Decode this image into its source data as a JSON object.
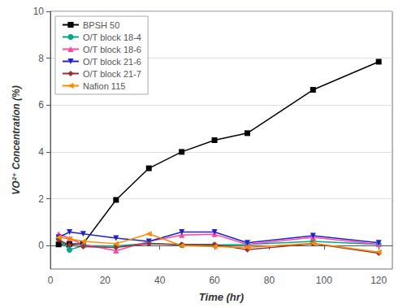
{
  "chart_data": {
    "type": "line",
    "xlabel": "Time (hr)",
    "ylabel": "VO²⁺ Concentration (%)",
    "x": [
      3,
      7,
      12,
      24,
      36,
      48,
      60,
      72,
      96,
      120
    ],
    "series": [
      {
        "name": "BPSH 50",
        "color": "#000000",
        "marker": "square",
        "values": [
          0.05,
          0.07,
          0.08,
          1.95,
          3.3,
          4.0,
          4.5,
          4.8,
          6.65,
          7.85
        ]
      },
      {
        "name": "O/T block 18-4",
        "color": "#00aa88",
        "marker": "circle",
        "values": [
          0.3,
          -0.18,
          0.0,
          -0.02,
          0.1,
          0.02,
          0.02,
          0.05,
          0.18,
          0.05
        ]
      },
      {
        "name": "O/T block 18-6",
        "color": "#ff44aa",
        "marker": "triangle-up",
        "values": [
          0.5,
          0.3,
          0.05,
          -0.22,
          0.18,
          0.45,
          0.48,
          0.05,
          0.35,
          0.05
        ]
      },
      {
        "name": "O/T block 21-6",
        "color": "#2222cc",
        "marker": "triangle-down",
        "values": [
          0.35,
          0.58,
          0.5,
          0.32,
          0.18,
          0.58,
          0.58,
          0.12,
          0.42,
          0.12
        ]
      },
      {
        "name": "O/T block 21-7",
        "color": "#993333",
        "marker": "diamond",
        "values": [
          0.25,
          0.02,
          -0.05,
          -0.08,
          0.08,
          0.05,
          0.05,
          -0.18,
          0.08,
          -0.32
        ]
      },
      {
        "name": "Nafion 115",
        "color": "#ff8800",
        "marker": "triangle-left",
        "values": [
          0.35,
          0.28,
          0.18,
          0.08,
          0.5,
          0.0,
          -0.05,
          -0.08,
          0.1,
          -0.28
        ]
      }
    ],
    "xlim": [
      0,
      125
    ],
    "xticks": [
      0,
      20,
      40,
      60,
      80,
      100,
      120
    ],
    "ylim": [
      -1,
      10
    ],
    "yticks": [
      0,
      2,
      4,
      6,
      8,
      10
    ],
    "legend": "upper left",
    "grid": true
  }
}
